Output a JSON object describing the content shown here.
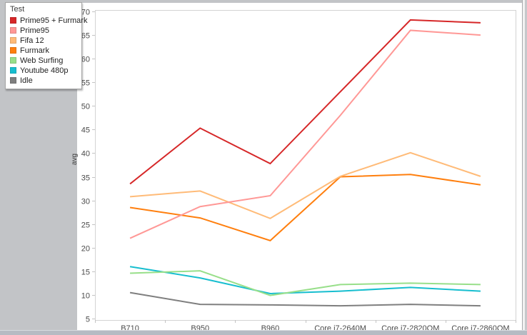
{
  "window": {
    "background_color": "#c2c4c7",
    "panel_color": "#ffffff"
  },
  "legend": {
    "title": "Test",
    "items": [
      {
        "label": "Prime95 + Furmark",
        "color": "#d62728"
      },
      {
        "label": "Prime95",
        "color": "#ff9896"
      },
      {
        "label": "Fifa 12",
        "color": "#ffbb78"
      },
      {
        "label": "Furmark",
        "color": "#ff7f0e"
      },
      {
        "label": "Web Surfing",
        "color": "#98df8a"
      },
      {
        "label": "Youtube 480p",
        "color": "#17becf"
      },
      {
        "label": "Idle",
        "color": "#7f7f7f"
      }
    ]
  },
  "chart_data": {
    "type": "line",
    "title": "",
    "xlabel": "",
    "ylabel": "avg",
    "ylim": [
      5,
      70
    ],
    "y_ticks": [
      70,
      65,
      60,
      55,
      50,
      45,
      40,
      35,
      30,
      25,
      20,
      15,
      10,
      5
    ],
    "grid": false,
    "legend_position": "top-left",
    "categories": [
      "B710",
      "B950",
      "B960",
      "Core i7-2640M",
      "Core i7-2820QM",
      "Core i7-2860QM"
    ],
    "series": [
      {
        "name": "Prime95 + Furmark",
        "color": "#d62728",
        "values": [
          33.5,
          45.3,
          37.8,
          53.0,
          68.2,
          67.6
        ]
      },
      {
        "name": "Prime95",
        "color": "#ff9896",
        "values": [
          22.0,
          28.7,
          31.0,
          48.0,
          66.0,
          65.0
        ]
      },
      {
        "name": "Fifa 12",
        "color": "#ffbb78",
        "values": [
          30.8,
          32.0,
          26.2,
          35.1,
          40.1,
          35.1
        ]
      },
      {
        "name": "Furmark",
        "color": "#ff7f0e",
        "values": [
          28.5,
          26.3,
          21.5,
          35.0,
          35.5,
          33.3
        ]
      },
      {
        "name": "Web Surfing",
        "color": "#98df8a",
        "values": [
          14.6,
          15.1,
          9.9,
          12.2,
          12.5,
          12.2
        ]
      },
      {
        "name": "Youtube 480p",
        "color": "#17becf",
        "values": [
          16.0,
          13.6,
          10.3,
          10.8,
          11.6,
          10.8
        ]
      },
      {
        "name": "Idle",
        "color": "#7f7f7f",
        "values": [
          10.5,
          8.0,
          7.9,
          7.7,
          8.0,
          7.7
        ]
      }
    ],
    "axis_color": "#d3d3d3",
    "tick_color": "#c4c4c4",
    "tick_label_color": "#4a4a4a"
  }
}
